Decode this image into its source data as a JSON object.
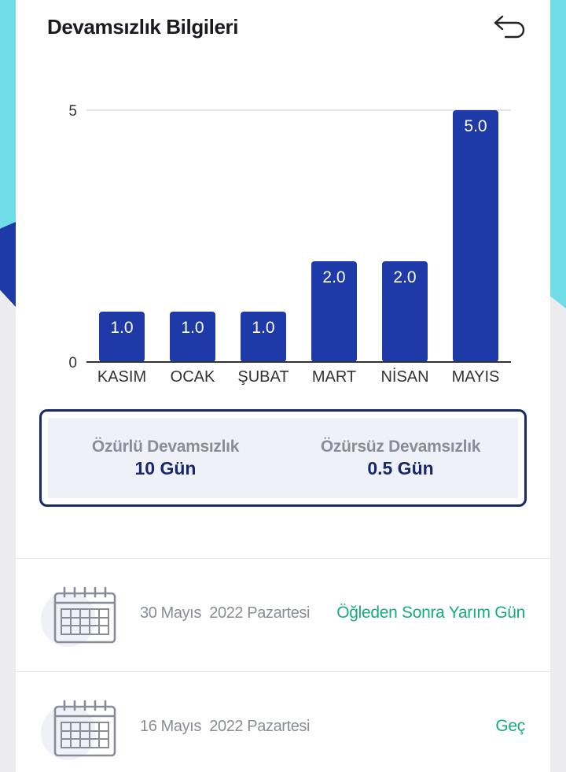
{
  "header": {
    "title": "Devamsızlık Bilgileri",
    "back_icon": "undo-arrow-icon"
  },
  "colors": {
    "bar": "#1e3aa8",
    "accent_green": "#17ad7a",
    "navy": "#16286b"
  },
  "chart_data": {
    "type": "bar",
    "categories": [
      "KASIM",
      "OCAK",
      "ŞUBAT",
      "MART",
      "NİSAN",
      "MAYIS"
    ],
    "values": [
      1.0,
      1.0,
      1.0,
      2.0,
      2.0,
      5.0
    ],
    "data_labels": [
      "1.0",
      "1.0",
      "1.0",
      "2.0",
      "2.0",
      "5.0"
    ],
    "yticks": [
      0,
      5
    ],
    "ylim": [
      0,
      5
    ],
    "grid": true
  },
  "summary": {
    "excused_label": "Özürlü Devamsızlık",
    "excused_value": "10 Gün",
    "unexcused_label": "Özürsüz Devamsızlık",
    "unexcused_value": "0.5 Gün"
  },
  "records": [
    {
      "date": "30 Mayıs  2022 Pazartesi",
      "status": "Öğleden Sonra Yarım Gün",
      "icon": "calendar-icon"
    },
    {
      "date": "16 Mayıs  2022 Pazartesi",
      "status": "Geç",
      "icon": "calendar-icon"
    }
  ]
}
